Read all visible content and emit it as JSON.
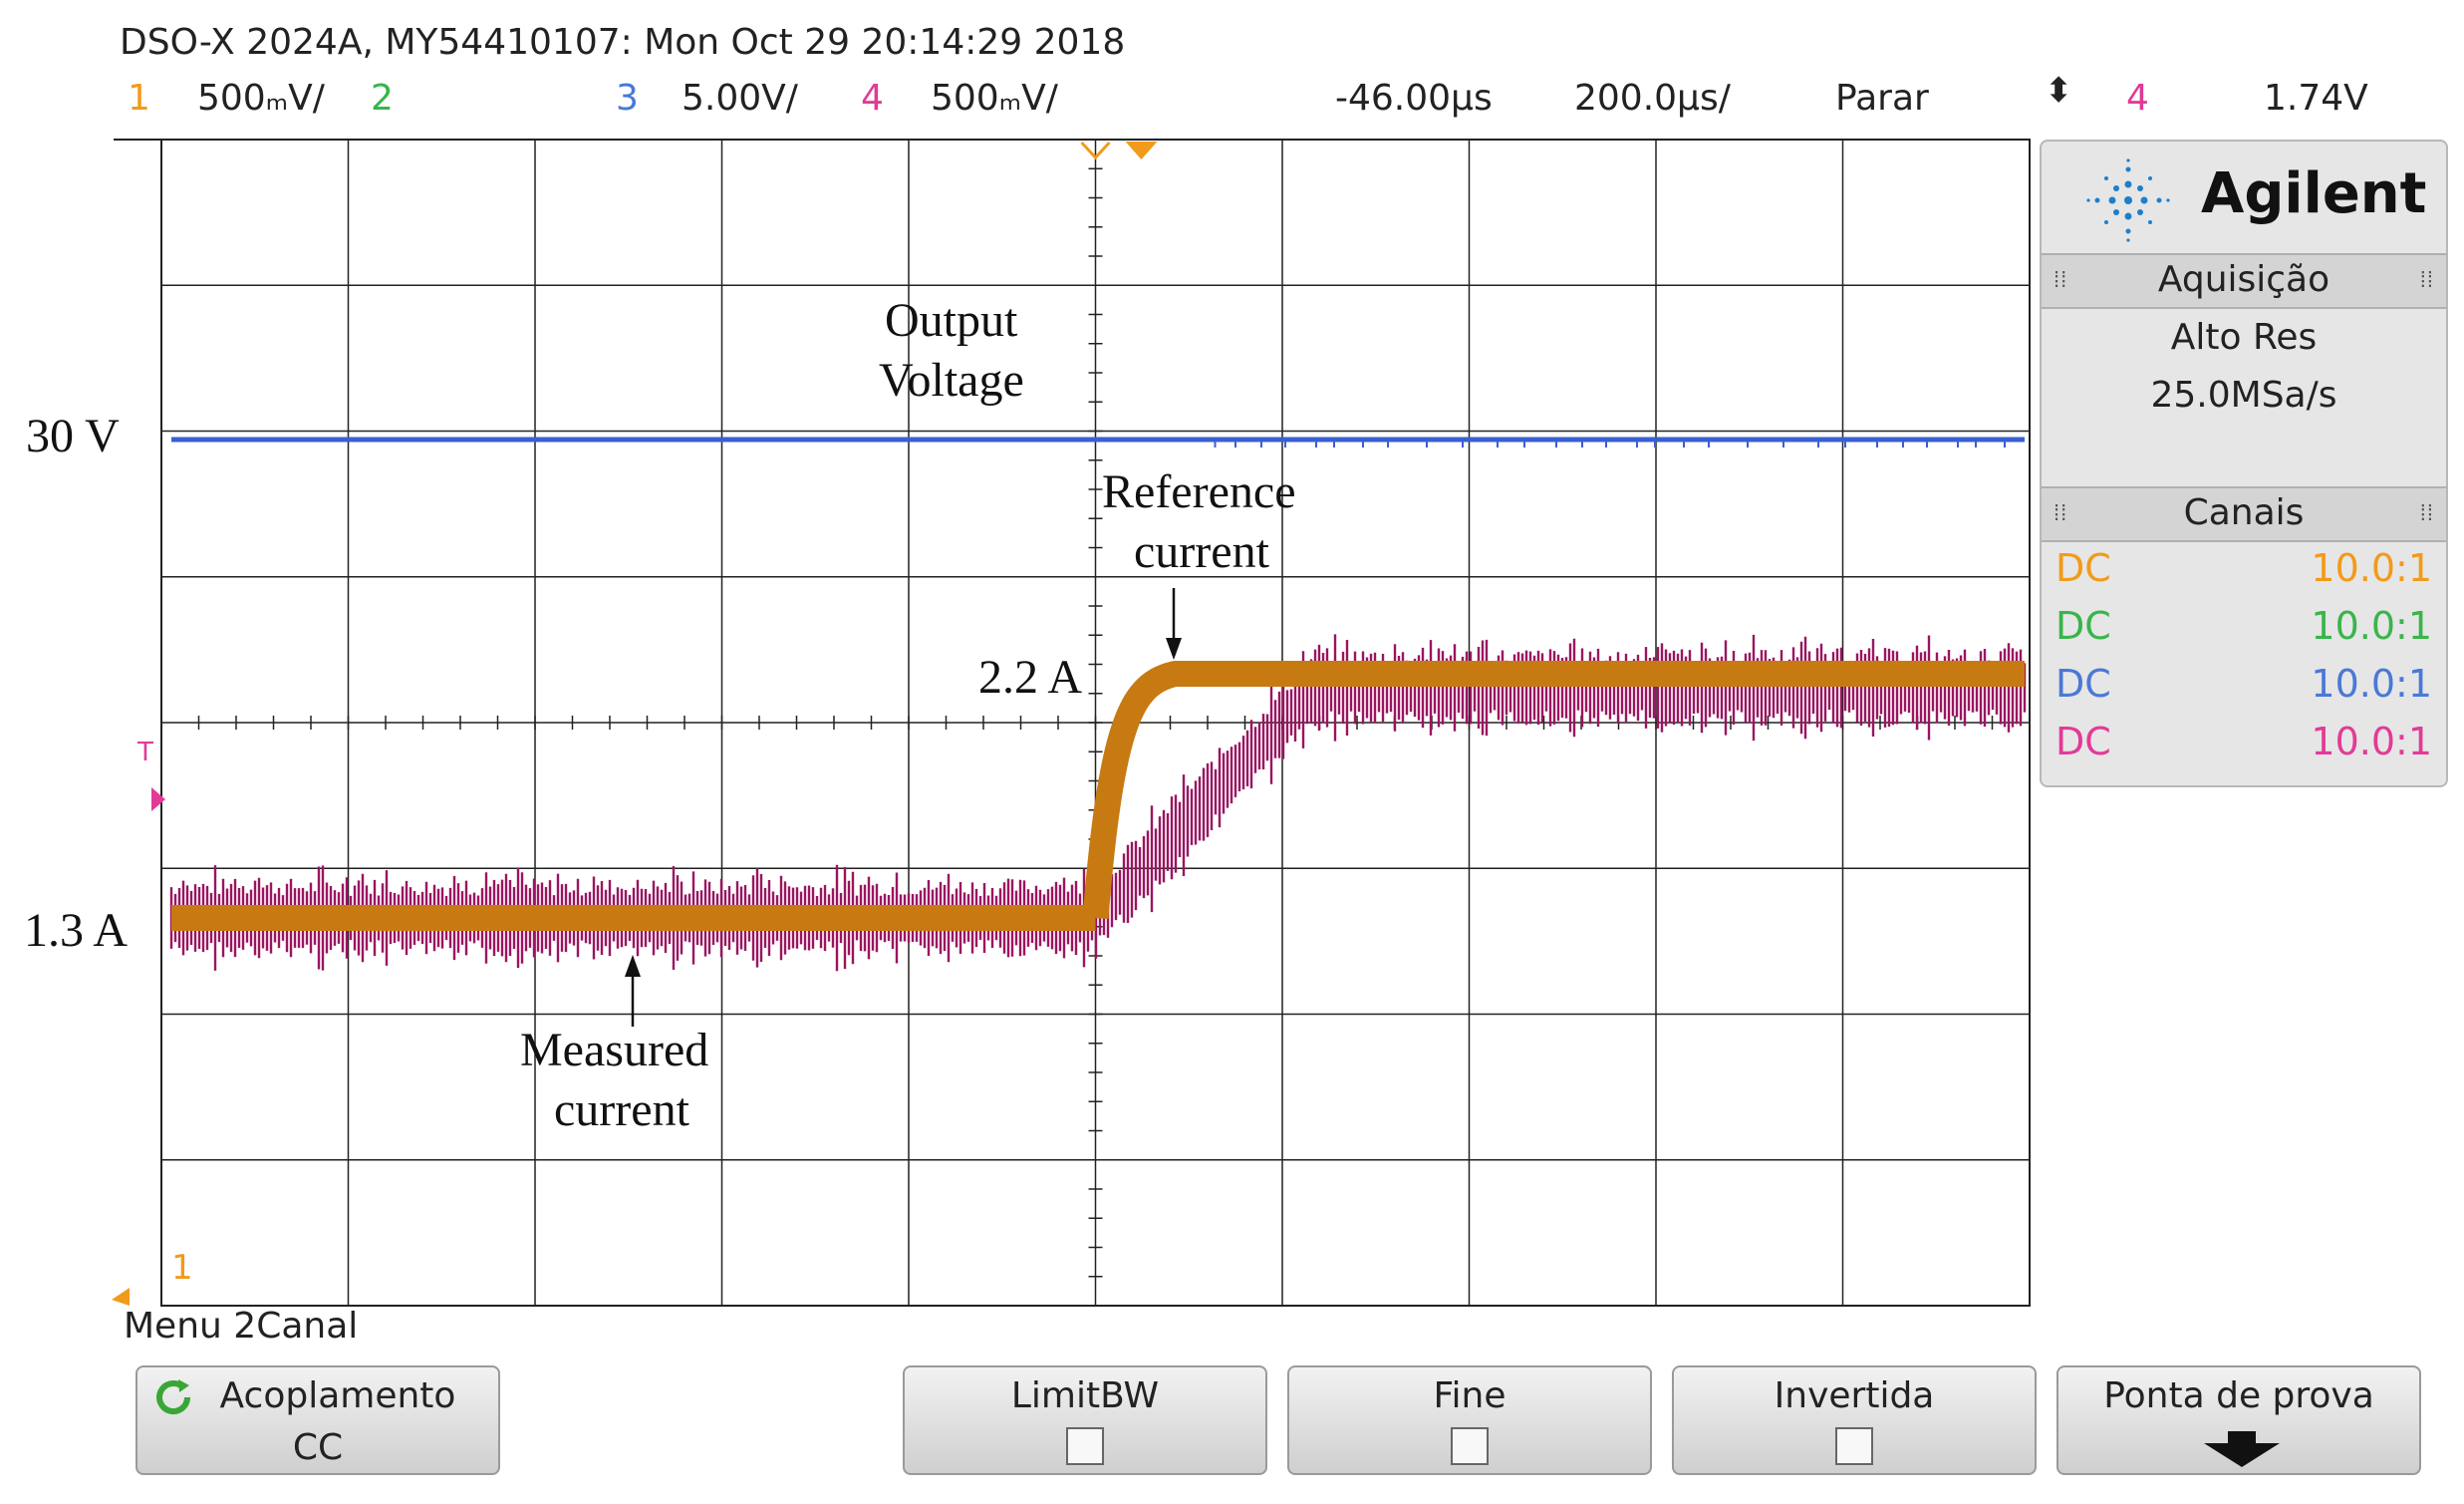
{
  "header": {
    "title": "DSO-X 2024A, MY54410107: Mon Oct 29 20:14:29 2018",
    "channels": [
      {
        "num": "1",
        "scale": "500​ₘV/",
        "color": "#f29a1a"
      },
      {
        "num": "2",
        "scale": "",
        "color": "#39b54a"
      },
      {
        "num": "3",
        "scale": "5.00V/",
        "color": "#4a78d6"
      },
      {
        "num": "4",
        "scale": "500ₘV/",
        "color": "#e23a97"
      }
    ],
    "delay": "-46.00µs",
    "timebase": "200.0µs/",
    "run_state": "Parar",
    "trigger_channel": "4",
    "trigger_level": "1.74V",
    "trigger_icon": "updown-arrows-icon"
  },
  "annotations": {
    "voltage_label": "30 V",
    "current_low_label": "1.3 A",
    "current_high_label": "2.2 A",
    "output_voltage": [
      "Output",
      "Voltage"
    ],
    "reference_current": [
      "Reference",
      "current"
    ],
    "measured_current": [
      "Measured",
      "current"
    ]
  },
  "markers": {
    "trigger_marker": "T",
    "ch1_ground": "1"
  },
  "panel": {
    "brand": "Agilent",
    "brand_icon": "agilent-spark-icon",
    "acq_title": "Aquisição",
    "acq_mode": "Alto Res",
    "sample_rate": "25.0MSa/s",
    "channels_title": "Canais",
    "channels": [
      {
        "coupling": "DC",
        "probe": "10.0:1",
        "color": "#f29a1a"
      },
      {
        "coupling": "DC",
        "probe": "10.0:1",
        "color": "#39b54a"
      },
      {
        "coupling": "DC",
        "probe": "10.0:1",
        "color": "#4a78d6"
      },
      {
        "coupling": "DC",
        "probe": "10.0:1",
        "color": "#e23a97"
      }
    ]
  },
  "menu": {
    "title": "Menu 2Canal",
    "softkeys": [
      {
        "label": "Acoplamento",
        "value": "CC",
        "icon": "rotate-icon"
      },
      {
        "label": "LimitBW",
        "checkbox": true
      },
      {
        "label": "Fine",
        "checkbox": true
      },
      {
        "label": "Invertida",
        "checkbox": true
      },
      {
        "label": "Ponta de prova",
        "icon": "down-arrow-icon"
      }
    ]
  },
  "colors": {
    "voltage_trace": "#3a5fd0",
    "reference_trace": "#c77a12",
    "measured_trace": "#9a1560",
    "grid": "#222222"
  }
}
